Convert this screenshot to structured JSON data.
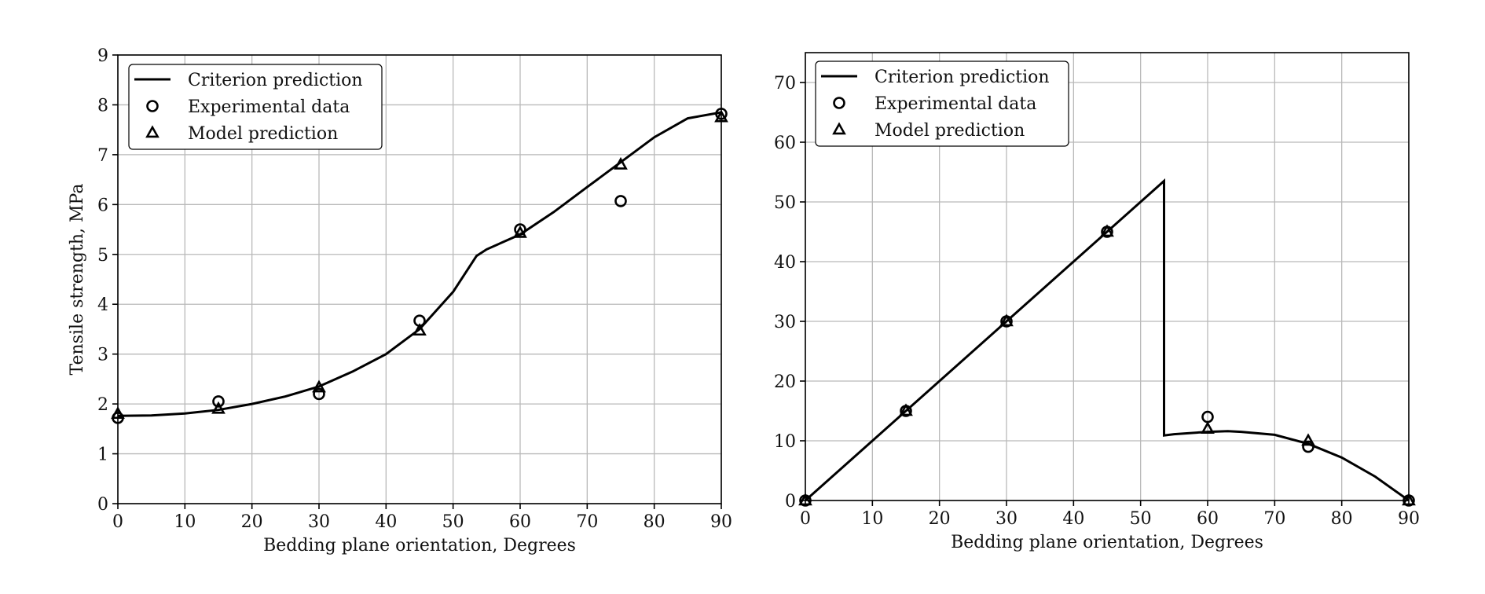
{
  "chart_data": [
    {
      "type": "line",
      "xlabel": "Bedding plane orientation, Degrees",
      "ylabel": "Tensile strength, MPa",
      "xlim": [
        0,
        90
      ],
      "ylim": [
        0,
        9
      ],
      "xticks": [
        0,
        10,
        20,
        30,
        40,
        50,
        60,
        70,
        80,
        90
      ],
      "yticks": [
        0,
        1,
        2,
        3,
        4,
        5,
        6,
        7,
        8,
        9
      ],
      "grid": true,
      "legend_position": "top-left",
      "legend": [
        "Criterion prediction",
        "Experimental data",
        "Model prediction"
      ],
      "series": [
        {
          "name": "Criterion prediction",
          "kind": "line",
          "x": [
            0,
            5,
            10,
            15,
            20,
            25,
            30,
            35,
            40,
            45,
            50,
            53.5,
            55,
            60,
            65,
            70,
            75,
            80,
            85,
            90
          ],
          "y": [
            1.76,
            1.77,
            1.81,
            1.88,
            2.0,
            2.15,
            2.35,
            2.65,
            3.0,
            3.5,
            4.25,
            4.97,
            5.1,
            5.4,
            5.85,
            6.35,
            6.85,
            7.35,
            7.73,
            7.85
          ]
        },
        {
          "name": "Experimental data",
          "kind": "scatter",
          "marker": "circle",
          "x": [
            0,
            15,
            30,
            45,
            60,
            75,
            90
          ],
          "y": [
            1.72,
            2.05,
            2.2,
            3.67,
            5.5,
            6.07,
            7.82
          ]
        },
        {
          "name": "Model prediction",
          "kind": "scatter",
          "marker": "triangle",
          "x": [
            0,
            15,
            30,
            45,
            60,
            75,
            90
          ],
          "y": [
            1.8,
            1.9,
            2.33,
            3.47,
            5.43,
            6.8,
            7.75
          ]
        }
      ]
    },
    {
      "type": "line",
      "xlabel": "Bedding plane orientation, Degrees",
      "ylabel": "",
      "xlim": [
        0,
        90
      ],
      "ylim": [
        0,
        75
      ],
      "xticks": [
        0,
        10,
        20,
        30,
        40,
        50,
        60,
        70,
        80,
        90
      ],
      "yticks": [
        0,
        10,
        20,
        30,
        40,
        50,
        60,
        70
      ],
      "grid": true,
      "legend_position": "top-left",
      "legend": [
        "Criterion prediction",
        "Experimental data",
        "Model prediction"
      ],
      "series": [
        {
          "name": "Criterion prediction",
          "kind": "line",
          "x": [
            0,
            53.5,
            53.5,
            55,
            60,
            63,
            65,
            70,
            75,
            80,
            85,
            90
          ],
          "y": [
            0,
            53.5,
            10.9,
            11.1,
            11.5,
            11.6,
            11.5,
            11.0,
            9.5,
            7.2,
            4.0,
            0
          ]
        },
        {
          "name": "Experimental data",
          "kind": "scatter",
          "marker": "circle",
          "x": [
            0,
            15,
            30,
            45,
            60,
            75,
            90
          ],
          "y": [
            0,
            15,
            30,
            45,
            14,
            9,
            0
          ]
        },
        {
          "name": "Model prediction",
          "kind": "scatter",
          "marker": "triangle",
          "x": [
            0,
            15,
            30,
            45,
            60,
            75,
            90
          ],
          "y": [
            0,
            15,
            30,
            45,
            12,
            10,
            0
          ]
        }
      ]
    }
  ]
}
